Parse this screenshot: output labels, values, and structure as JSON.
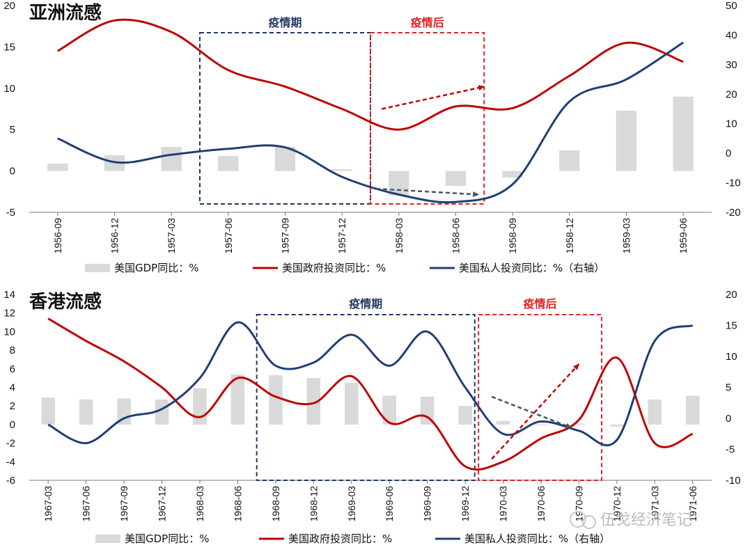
{
  "colors": {
    "gdp": "#d9d9d9",
    "gov": "#c00000",
    "priv": "#1f3f73",
    "during_box": "#1f3864",
    "after_box": "#e02020",
    "arrow_red": "#c00000",
    "arrow_gray": "#445566"
  },
  "legend": {
    "gdp": "美国GDP同比：%",
    "gov": "美国政府投资同比：%",
    "priv": "美国私人投资同比：%（右轴）"
  },
  "watermark": "伍戈经济笔记",
  "chart_data": [
    {
      "type": "bar",
      "title": "亚洲流感",
      "categories": [
        "1956-09",
        "1956-12",
        "1957-03",
        "1957-06",
        "1957-09",
        "1957-12",
        "1958-03",
        "1958-06",
        "1958-09",
        "1958-12",
        "1959-03",
        "1959-06"
      ],
      "ylim": [
        -5,
        20
      ],
      "yticks": [
        "-5",
        "0",
        "5",
        "10",
        "15",
        "20"
      ],
      "y2lim": [
        -20,
        50
      ],
      "y2ticks": [
        "-20",
        "-10",
        "0",
        "10",
        "20",
        "30",
        "40",
        "50"
      ],
      "series": [
        {
          "name": "美国GDP同比：%",
          "type": "bar",
          "axis": "left",
          "values": [
            0.9,
            1.9,
            2.9,
            1.8,
            2.9,
            0.2,
            -3.0,
            -1.8,
            -0.8,
            2.5,
            7.3,
            9.0
          ]
        },
        {
          "name": "美国政府投资同比：%",
          "type": "line",
          "axis": "left",
          "values": [
            14.5,
            18.2,
            16.8,
            12.2,
            10.2,
            7.5,
            5.0,
            7.8,
            7.6,
            11.5,
            15.5,
            13.2
          ]
        },
        {
          "name": "美国私人投资同比：%（右轴）",
          "type": "line",
          "axis": "right",
          "values": [
            5.0,
            -3.0,
            -0.5,
            1.5,
            2.0,
            -8.0,
            -14.0,
            -16.5,
            -10.5,
            17.5,
            25.0,
            37.5
          ]
        }
      ],
      "boxes": [
        {
          "label": "疫情期",
          "from": 3,
          "to": 6,
          "kind": "during"
        },
        {
          "label": "疫情后",
          "from": 6,
          "to": 8,
          "kind": "after"
        }
      ]
    },
    {
      "type": "bar",
      "title": "香港流感",
      "categories": [
        "1967-03",
        "1967-06",
        "1967-09",
        "1967-12",
        "1968-03",
        "1968-06",
        "1968-09",
        "1968-12",
        "1969-03",
        "1969-06",
        "1969-09",
        "1969-12",
        "1970-03",
        "1970-06",
        "1970-09",
        "1970-12",
        "1971-03",
        "1971-06"
      ],
      "ylim": [
        -6,
        14
      ],
      "yticks": [
        "-6",
        "-4",
        "-2",
        "0",
        "2",
        "4",
        "6",
        "8",
        "10",
        "12",
        "14"
      ],
      "y2lim": [
        -10,
        20
      ],
      "y2ticks": [
        "-10",
        "-5",
        "0",
        "5",
        "10",
        "15",
        "20"
      ],
      "series": [
        {
          "name": "美国GDP同比：%",
          "type": "bar",
          "axis": "left",
          "values": [
            2.9,
            2.7,
            2.8,
            2.7,
            3.9,
            5.4,
            5.3,
            5.0,
            4.5,
            3.1,
            3.0,
            2.0,
            0.4,
            0.0,
            0.1,
            -0.2,
            2.7,
            3.1
          ]
        },
        {
          "name": "美国政府投资同比：%",
          "type": "line",
          "axis": "left",
          "values": [
            11.4,
            9.0,
            6.8,
            4.0,
            0.8,
            5.0,
            3.0,
            2.3,
            5.2,
            0.2,
            0.8,
            -4.5,
            -4.0,
            -1.5,
            0.5,
            7.2,
            -2.0,
            -1.0
          ]
        },
        {
          "name": "美国私人投资同比：%（右轴）",
          "type": "line",
          "axis": "right",
          "values": [
            -1.0,
            -4.0,
            0.0,
            1.5,
            6.5,
            15.5,
            8.5,
            9.0,
            13.5,
            8.5,
            14.0,
            5.0,
            -2.5,
            -0.5,
            -2.0,
            -3.5,
            12.5,
            15.0
          ]
        }
      ],
      "boxes": [
        {
          "label": "疫情期",
          "from": 6,
          "to": 11.75,
          "kind": "during"
        },
        {
          "label": "疫情后",
          "from": 11.85,
          "to": 15.1,
          "kind": "after"
        }
      ]
    }
  ]
}
